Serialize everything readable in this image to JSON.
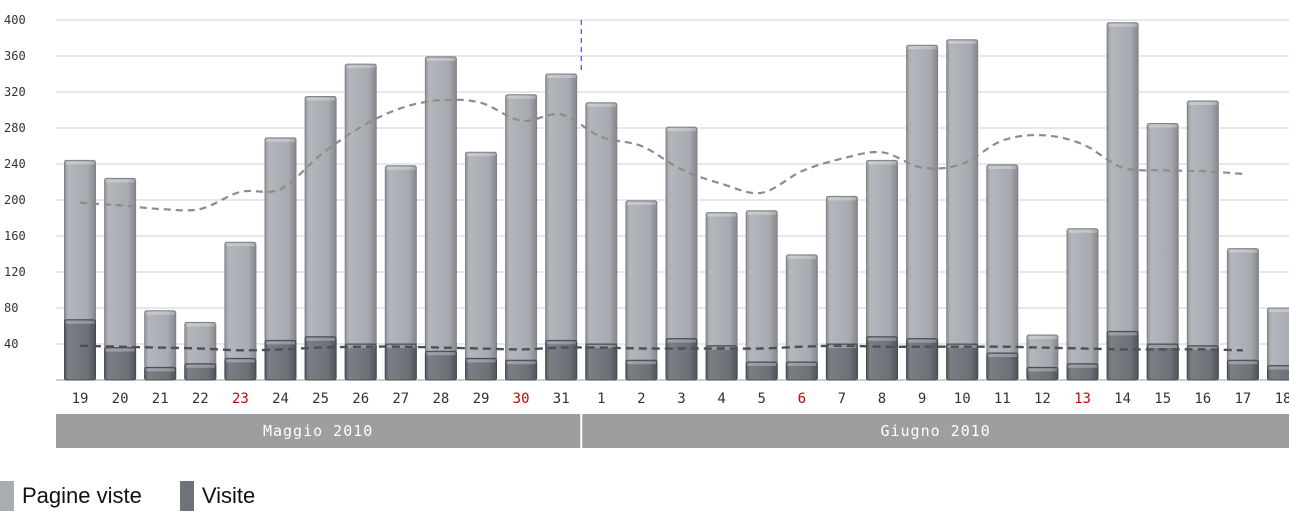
{
  "chart_data": {
    "type": "bar",
    "ylim": [
      0,
      400
    ],
    "yticks": [
      40,
      80,
      120,
      160,
      200,
      240,
      280,
      320,
      360,
      400
    ],
    "categories": [
      "19",
      "20",
      "21",
      "22",
      "23",
      "24",
      "25",
      "26",
      "27",
      "28",
      "29",
      "30",
      "31",
      "1",
      "2",
      "3",
      "4",
      "5",
      "6",
      "7",
      "8",
      "9",
      "10",
      "11",
      "12",
      "13",
      "14",
      "15",
      "16",
      "17",
      "18"
    ],
    "holiday_labels": [
      "23",
      "30",
      "6",
      "13"
    ],
    "months": [
      {
        "label": "Maggio 2010",
        "span": 13
      },
      {
        "label": "Giugno 2010",
        "span": 18
      }
    ],
    "series": [
      {
        "name": "Pagine viste",
        "color": "#a9adb2",
        "values": [
          244,
          224,
          77,
          64,
          153,
          269,
          315,
          351,
          238,
          359,
          253,
          317,
          340,
          308,
          199,
          281,
          186,
          188,
          139,
          204,
          244,
          372,
          378,
          239,
          50,
          168,
          397,
          285,
          310,
          146,
          80
        ]
      },
      {
        "name": "Visite",
        "color": "#6e737b",
        "values": [
          67,
          36,
          14,
          18,
          24,
          44,
          48,
          40,
          40,
          32,
          24,
          22,
          44,
          40,
          22,
          46,
          38,
          20,
          20,
          40,
          48,
          46,
          40,
          30,
          14,
          18,
          54,
          40,
          38,
          22,
          16
        ]
      }
    ],
    "trend_pagine_viste": [
      197,
      194,
      190,
      190,
      209,
      212,
      250,
      281,
      302,
      311,
      308,
      288,
      295,
      270,
      260,
      234,
      218,
      208,
      232,
      246,
      253,
      236,
      240,
      266,
      272,
      262,
      236,
      233,
      232,
      229
    ],
    "trend_visite": [
      38,
      37,
      36,
      35,
      33,
      34,
      36,
      37,
      37,
      36,
      35,
      34,
      36,
      36,
      35,
      35,
      35,
      35,
      37,
      38,
      37,
      37,
      37,
      37,
      36,
      35,
      34,
      34,
      34,
      33
    ],
    "legend_position": "bottom-left",
    "grid": true
  },
  "legend": {
    "pageviews_label": "Pagine viste",
    "visits_label": "Visite",
    "pageviews_color": "#a9adb2",
    "visits_color": "#6e737b"
  }
}
